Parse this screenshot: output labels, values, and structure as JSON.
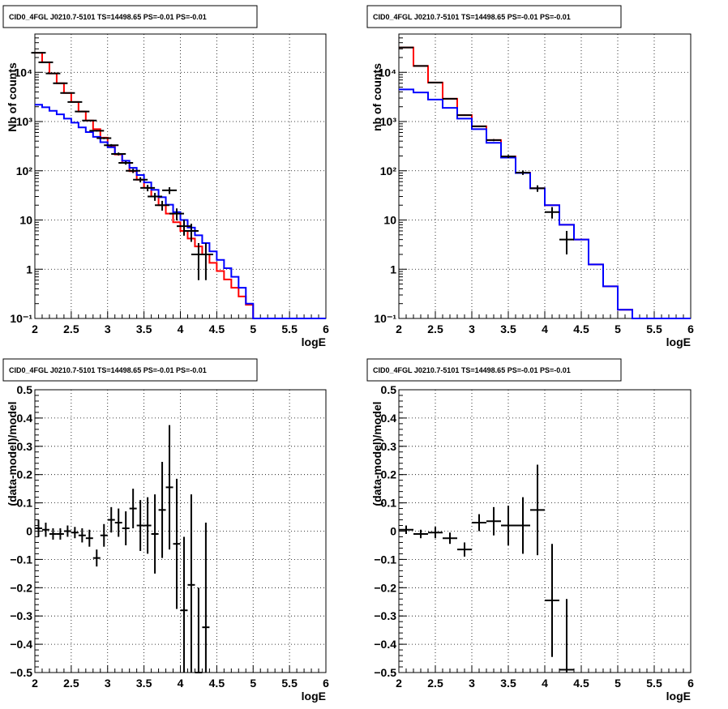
{
  "chart_data": [
    {
      "id": "tl",
      "type": "histogram",
      "title": "CID0_4FGL J0210.7-5101 TS=14498.65 PS=-0.01 PS=-0.01",
      "xlabel": "logE",
      "ylabel": "Nb of counts",
      "xlim": [
        2,
        6
      ],
      "ylim": [
        0.1,
        60000
      ],
      "ylog": true,
      "grid": true,
      "xticks": [
        "2",
        "2.5",
        "3",
        "3.5",
        "4",
        "4.5",
        "5",
        "5.5",
        "6"
      ],
      "yticks": [
        {
          "value": 0.1,
          "label": "10⁻¹"
        },
        {
          "value": 1,
          "label": "1"
        },
        {
          "value": 10,
          "label": "10"
        },
        {
          "value": 100,
          "label": "10²"
        },
        {
          "value": 1000,
          "label": "10³"
        },
        {
          "value": 10000,
          "label": "10⁴"
        }
      ],
      "bin_edges": [
        2.0,
        2.1,
        2.2,
        2.3,
        2.4,
        2.5,
        2.6,
        2.7,
        2.8,
        2.9,
        3.0,
        3.1,
        3.2,
        3.3,
        3.4,
        3.5,
        3.6,
        3.7,
        3.8,
        3.9,
        4.0,
        4.1,
        4.2,
        4.3,
        4.4,
        4.5,
        4.6,
        4.7,
        4.8,
        4.9,
        5.0,
        5.1,
        5.2,
        5.3,
        5.4,
        5.5,
        5.6,
        5.7,
        5.8,
        5.9,
        6.0
      ],
      "series": [
        {
          "color": "#ff0000",
          "kind": "step",
          "values": [
            25000,
            16000,
            9500,
            6000,
            3800,
            2500,
            1600,
            1050,
            700,
            470,
            320,
            215,
            145,
            98,
            66,
            45,
            30,
            20,
            13.5,
            9,
            6,
            4.2,
            2.9,
            2,
            1.35,
            0.92,
            0.62,
            0.42,
            0.28,
            0.19,
            0.1,
            0.1,
            0.1,
            0.1,
            0.1,
            0.1,
            0.1,
            0.1,
            0.1,
            0.1
          ]
        },
        {
          "color": "#0000ff",
          "kind": "step",
          "values": [
            2200,
            1950,
            1650,
            1400,
            1150,
            950,
            760,
            610,
            490,
            380,
            300,
            220,
            160,
            115,
            82,
            58,
            41,
            29,
            20.5,
            14.5,
            10,
            7,
            4.9,
            3.4,
            2.3,
            1.55,
            1.05,
            0.7,
            0.42,
            0.2,
            0.1,
            0.1,
            0.1,
            0.1,
            0.1,
            0.1,
            0.1,
            0.1,
            0.1,
            0.1
          ]
        },
        {
          "color": "#000000",
          "kind": "points",
          "x": [
            2.05,
            2.15,
            2.25,
            2.35,
            2.45,
            2.55,
            2.65,
            2.75,
            2.85,
            2.95,
            3.05,
            3.15,
            3.25,
            3.35,
            3.45,
            3.55,
            3.65,
            3.75,
            3.85,
            3.95,
            4.05,
            4.15,
            4.25,
            4.35
          ],
          "y": [
            25000,
            16000,
            9500,
            6000,
            3800,
            2500,
            1600,
            1050,
            650,
            460,
            330,
            220,
            145,
            100,
            66,
            45,
            30,
            20,
            40,
            13.5,
            7.5,
            6,
            2,
            2
          ],
          "yerr": [
            160,
            126,
            97,
            77,
            62,
            50,
            40,
            32,
            25,
            21,
            18,
            15,
            12,
            10,
            8,
            6.7,
            5.5,
            4.5,
            6.3,
            3.7,
            2.7,
            2.4,
            1.4,
            1.4
          ]
        }
      ]
    },
    {
      "id": "tr",
      "type": "histogram",
      "title": "CID0_4FGL J0210.7-5101 TS=14498.65 PS=-0.01 PS=-0.01",
      "xlabel": "logE",
      "ylabel": "nb of counts",
      "xlim": [
        2,
        6
      ],
      "ylim": [
        0.1,
        60000
      ],
      "ylog": true,
      "grid": true,
      "xticks": [
        "2",
        "2.5",
        "3",
        "3.5",
        "4",
        "4.5",
        "5",
        "5.5",
        "6"
      ],
      "yticks": [
        {
          "value": 0.1,
          "label": "10⁻¹"
        },
        {
          "value": 1,
          "label": "1"
        },
        {
          "value": 10,
          "label": "10"
        },
        {
          "value": 100,
          "label": "10²"
        },
        {
          "value": 1000,
          "label": "10³"
        },
        {
          "value": 10000,
          "label": "10⁴"
        }
      ],
      "bin_edges": [
        2.0,
        2.2,
        2.4,
        2.6,
        2.8,
        3.0,
        3.2,
        3.4,
        3.6,
        3.8,
        4.0,
        4.2,
        4.4,
        4.6,
        4.8,
        5.0,
        5.2,
        5.4,
        5.6,
        5.8,
        6.0
      ],
      "series": [
        {
          "color": "#ff0000",
          "kind": "step",
          "values": [
            32000,
            13500,
            6200,
            2900,
            1350,
            800,
            420,
            195,
            92,
            44,
            20,
            8,
            4,
            1.25,
            0.45,
            0.15,
            0.1,
            0.1,
            0.1,
            0.1
          ]
        },
        {
          "color": "#0000ff",
          "kind": "step",
          "values": [
            4500,
            3900,
            2800,
            1900,
            1150,
            700,
            370,
            185,
            90,
            44,
            20,
            8,
            4,
            1.25,
            0.45,
            0.15,
            0.1,
            0.1,
            0.1,
            0.1
          ]
        },
        {
          "color": "#000000",
          "kind": "points",
          "x": [
            2.1,
            2.3,
            2.5,
            2.7,
            2.9,
            3.1,
            3.3,
            3.5,
            3.7,
            3.9,
            4.1,
            4.3
          ],
          "y": [
            32000,
            13500,
            6200,
            2900,
            1350,
            800,
            420,
            195,
            92,
            44,
            14.5,
            4
          ],
          "yerr": [
            180,
            116,
            79,
            54,
            37,
            28,
            20,
            14,
            9.6,
            6.6,
            3.8,
            2
          ]
        }
      ]
    },
    {
      "id": "bl",
      "type": "scatter",
      "title": "CID0_4FGL J0210.7-5101 TS=14498.65 PS=-0.01 PS=-0.01",
      "xlabel": "logE",
      "ylabel": "(data-model)/model",
      "xlim": [
        2,
        6
      ],
      "ylim": [
        -0.5,
        0.5
      ],
      "ylog": false,
      "grid": true,
      "xticks": [
        "2",
        "2.5",
        "3",
        "3.5",
        "4",
        "4.5",
        "5",
        "5.5",
        "6"
      ],
      "yticks": [
        {
          "value": -0.5,
          "label": "−0.5"
        },
        {
          "value": -0.4,
          "label": "−0.4"
        },
        {
          "value": -0.3,
          "label": "−0.3"
        },
        {
          "value": -0.2,
          "label": "−0.2"
        },
        {
          "value": -0.1,
          "label": "−0.1"
        },
        {
          "value": 0,
          "label": "0"
        },
        {
          "value": 0.1,
          "label": "0.1"
        },
        {
          "value": 0.2,
          "label": "0.2"
        },
        {
          "value": 0.3,
          "label": "0.3"
        },
        {
          "value": 0.4,
          "label": "0.4"
        },
        {
          "value": 0.5,
          "label": "0.5"
        }
      ],
      "series": [
        {
          "color": "#000000",
          "kind": "points",
          "xerr": 0.05,
          "x": [
            2.05,
            2.15,
            2.25,
            2.35,
            2.45,
            2.55,
            2.65,
            2.75,
            2.85,
            2.95,
            3.05,
            3.15,
            3.25,
            3.35,
            3.45,
            3.55,
            3.65,
            3.75,
            3.85,
            3.95,
            4.05,
            4.15,
            4.25,
            4.35
          ],
          "y": [
            0.01,
            0.005,
            -0.01,
            -0.01,
            0.0,
            -0.005,
            -0.015,
            -0.025,
            -0.095,
            -0.015,
            0.04,
            0.03,
            0.01,
            0.08,
            0.02,
            0.02,
            -0.01,
            0.075,
            0.155,
            -0.045,
            -0.28,
            -0.19,
            -0.5,
            -0.34
          ],
          "yerr": [
            0.03,
            0.025,
            0.02,
            0.02,
            0.02,
            0.02,
            0.025,
            0.03,
            0.03,
            0.04,
            0.045,
            0.05,
            0.06,
            0.07,
            0.09,
            0.1,
            0.14,
            0.17,
            0.22,
            0.23,
            0.26,
            0.32,
            0.3,
            0.37
          ]
        }
      ]
    },
    {
      "id": "br",
      "type": "scatter",
      "title": "CID0_4FGL J0210.7-5101 TS=14498.65 PS=-0.01 PS=-0.01",
      "xlabel": "logE",
      "ylabel": "(data-model)/model",
      "xlim": [
        2,
        6
      ],
      "ylim": [
        -0.5,
        0.5
      ],
      "ylog": false,
      "grid": true,
      "xticks": [
        "2",
        "2.5",
        "3",
        "3.5",
        "4",
        "4.5",
        "5",
        "5.5",
        "6"
      ],
      "yticks": [
        {
          "value": -0.5,
          "label": "−0.5"
        },
        {
          "value": -0.4,
          "label": "−0.4"
        },
        {
          "value": -0.3,
          "label": "−0.3"
        },
        {
          "value": -0.2,
          "label": "−0.2"
        },
        {
          "value": -0.1,
          "label": "−0.1"
        },
        {
          "value": 0,
          "label": "0"
        },
        {
          "value": 0.1,
          "label": "0.1"
        },
        {
          "value": 0.2,
          "label": "0.2"
        },
        {
          "value": 0.3,
          "label": "0.3"
        },
        {
          "value": 0.4,
          "label": "0.4"
        },
        {
          "value": 0.5,
          "label": "0.5"
        }
      ],
      "series": [
        {
          "color": "#000000",
          "kind": "points",
          "xerr": 0.1,
          "x": [
            2.1,
            2.3,
            2.5,
            2.7,
            2.9,
            3.1,
            3.3,
            3.5,
            3.7,
            3.9,
            4.1,
            4.3
          ],
          "y": [
            0.005,
            -0.01,
            -0.005,
            -0.025,
            -0.065,
            0.03,
            0.035,
            0.02,
            0.02,
            0.075,
            -0.245,
            -0.49
          ],
          "yerr": [
            0.015,
            0.015,
            0.02,
            0.02,
            0.025,
            0.03,
            0.05,
            0.07,
            0.1,
            0.16,
            0.2,
            0.25
          ]
        }
      ]
    }
  ]
}
